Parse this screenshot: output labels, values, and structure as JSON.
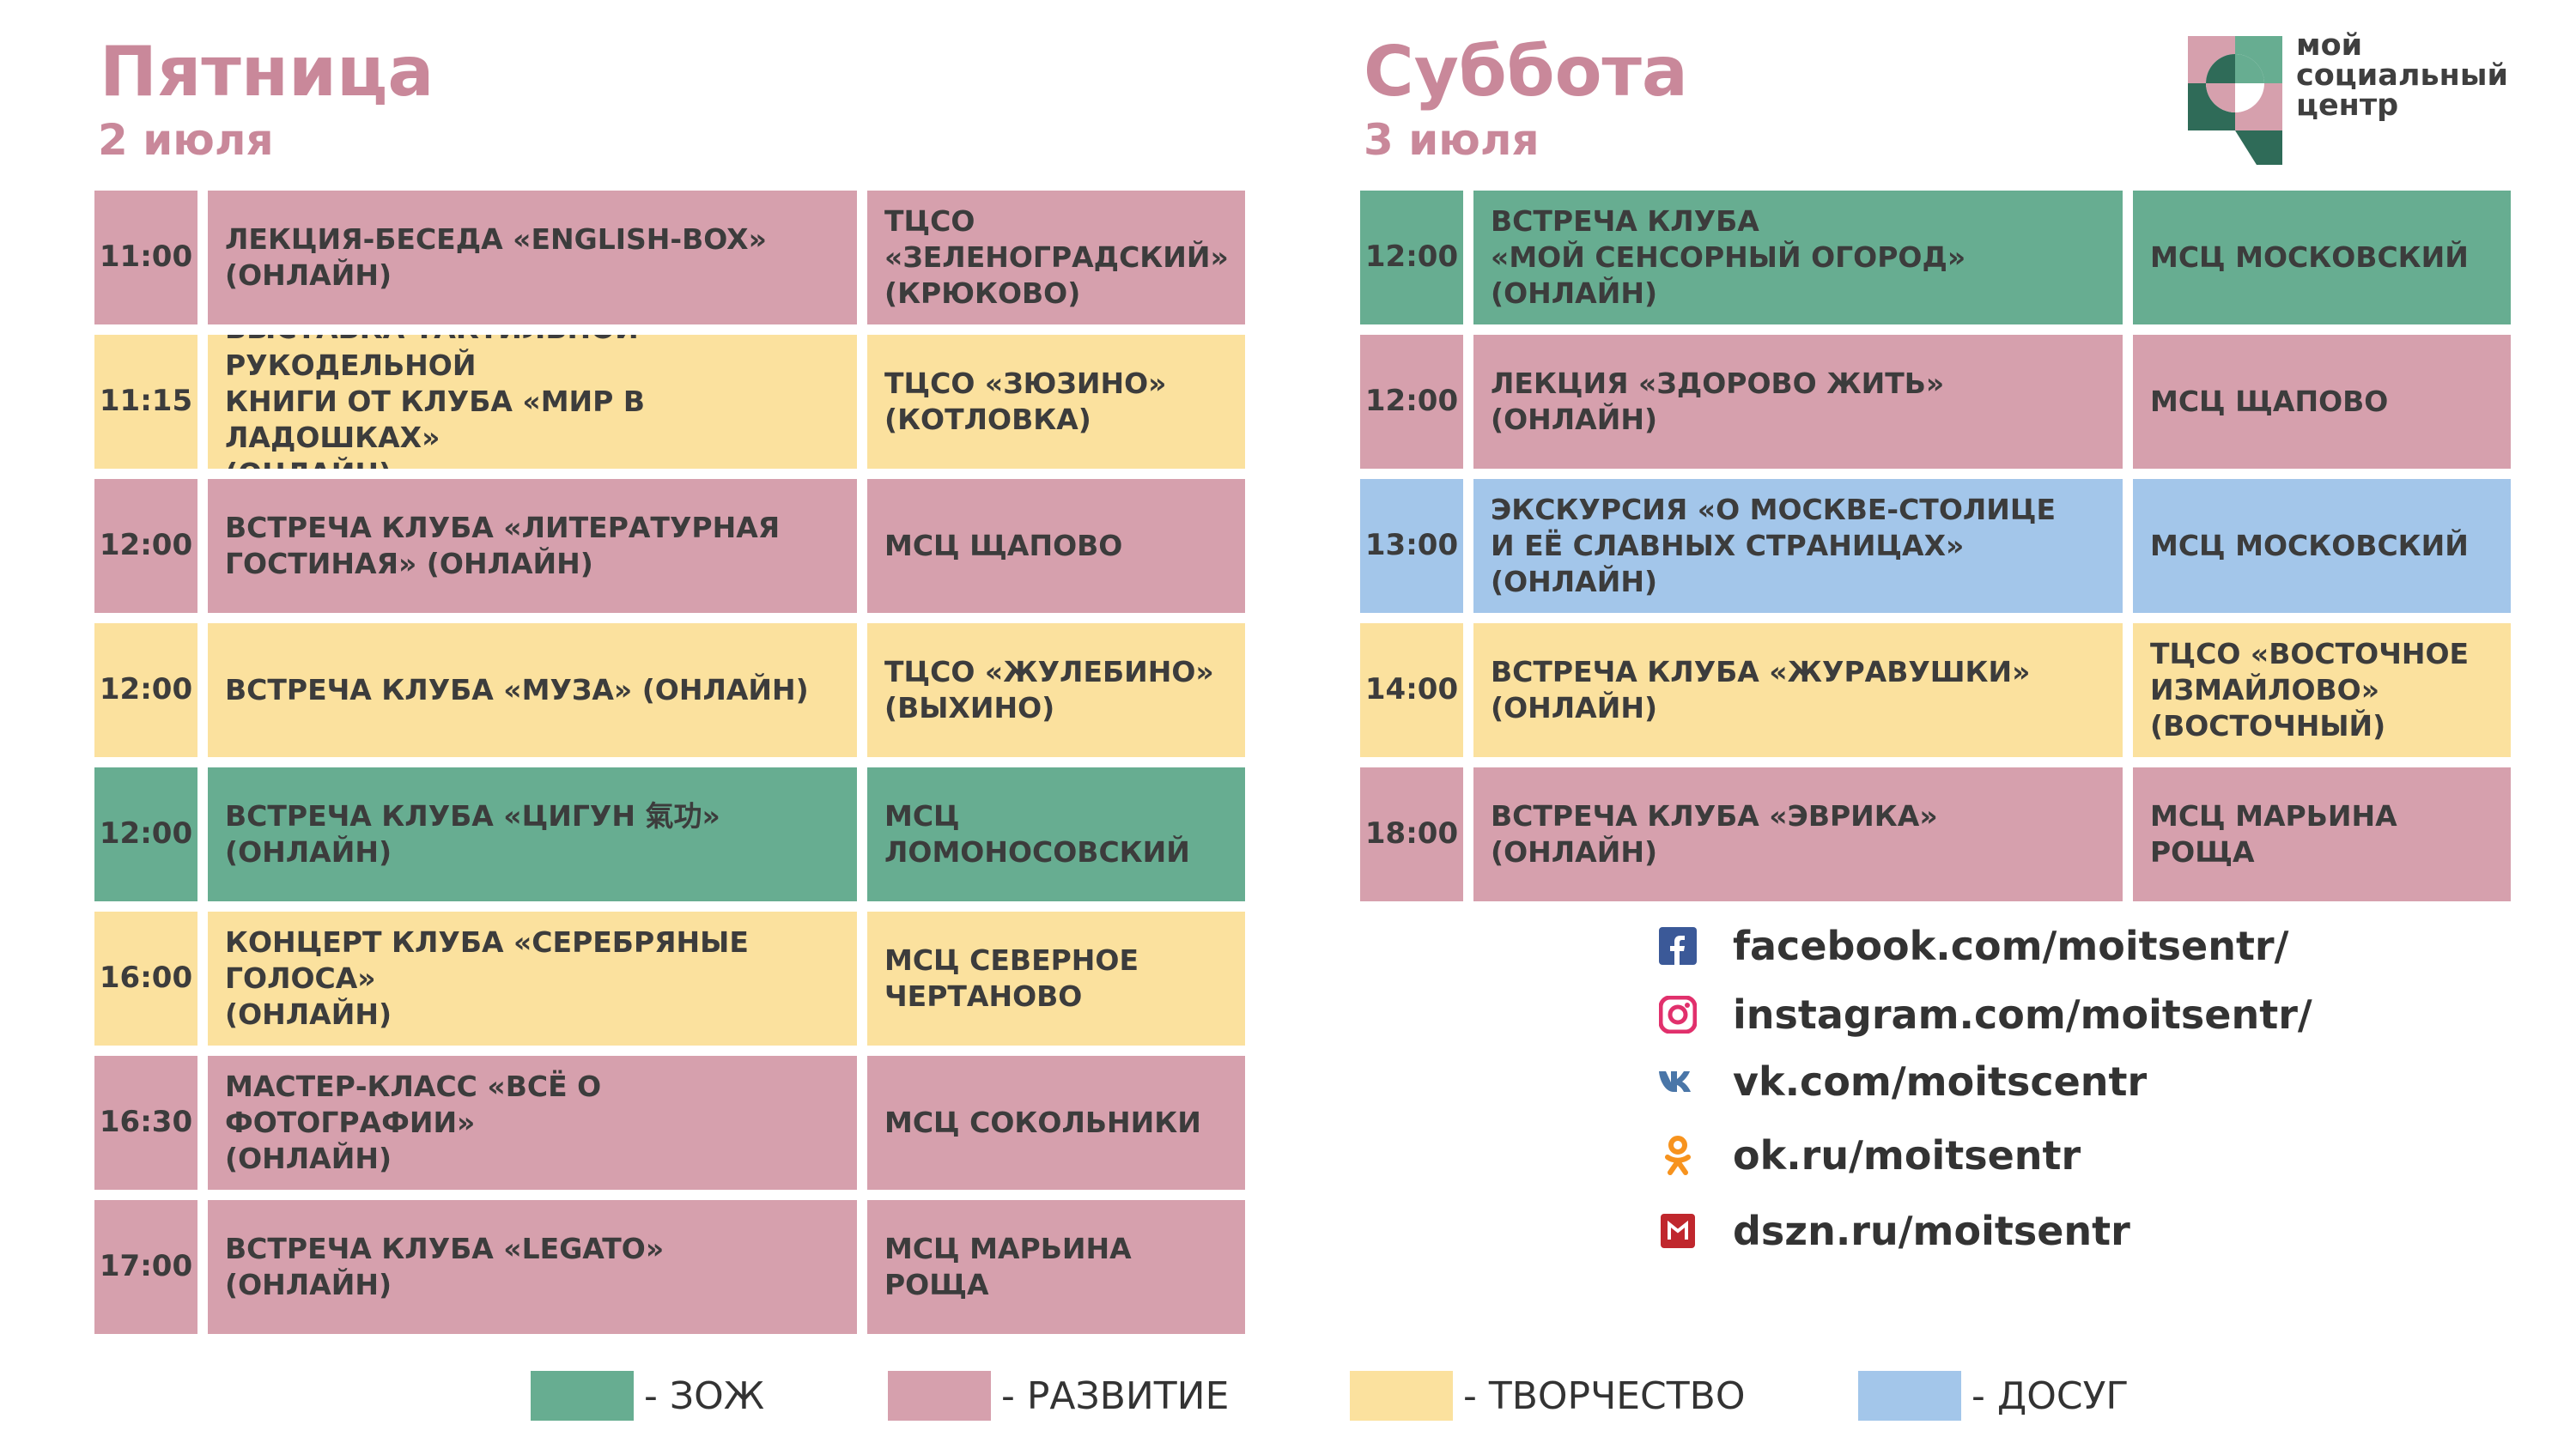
{
  "friday": {
    "title": "Пятница",
    "date": "2 июля",
    "events": [
      {
        "time": "11:00",
        "title": "ЛЕКЦИЯ-БЕСЕДА «ENGLISH-BOX»\n(ОНЛАЙН)",
        "place": "ТЦСО\n«ЗЕЛЕНОГРАДСКИЙ»\n(КРЮКОВО)",
        "category": "pink"
      },
      {
        "time": "11:15",
        "title": "ВЫСТАВКА ТАКТИЛЬНОЙ РУКОДЕЛЬНОЙ\nКНИГИ ОТ КЛУБА «МИР В ЛАДОШКАХ»\n(ОНЛАЙН)",
        "place": "ТЦСО «ЗЮЗИНО»\n(КОТЛОВКА)",
        "category": "yellow"
      },
      {
        "time": "12:00",
        "title": "ВСТРЕЧА КЛУБА «ЛИТЕРАТУРНАЯ\nГОСТИНАЯ» (ОНЛАЙН)",
        "place": "МСЦ ЩАПОВО",
        "category": "pink"
      },
      {
        "time": "12:00",
        "title": "ВСТРЕЧА КЛУБА «МУЗА» (ОНЛАЙН)",
        "place": "ТЦСО «ЖУЛЕБИНО»\n(ВЫХИНО)",
        "category": "yellow"
      },
      {
        "time": "12:00",
        "title": "ВСТРЕЧА КЛУБА «ЦИГУН 氣功» (ОНЛАЙН)",
        "place": "МСЦ\nЛОМОНОСОВСКИЙ",
        "category": "green"
      },
      {
        "time": "16:00",
        "title": "КОНЦЕРТ КЛУБА «СЕРЕБРЯНЫЕ ГОЛОСА»\n(ОНЛАЙН)",
        "place": "МСЦ СЕВЕРНОЕ\nЧЕРТАНОВО",
        "category": "yellow"
      },
      {
        "time": "16:30",
        "title": "МАСТЕР-КЛАСС «ВСЁ О ФОТОГРАФИИ»\n(ОНЛАЙН)",
        "place": "МСЦ СОКОЛЬНИКИ",
        "category": "pink"
      },
      {
        "time": "17:00",
        "title": "ВСТРЕЧА КЛУБА «LEGATO» (ОНЛАЙН)",
        "place": "МСЦ МАРЬИНА РОЩА",
        "category": "pink"
      }
    ]
  },
  "saturday": {
    "title": "Суббота",
    "date": "3 июля",
    "events": [
      {
        "time": "12:00",
        "title": "ВСТРЕЧА КЛУБА\n«МОЙ СЕНСОРНЫЙ ОГОРОД» (ОНЛАЙН)",
        "place": "МСЦ МОСКОВСКИЙ",
        "category": "green"
      },
      {
        "time": "12:00",
        "title": "ЛЕКЦИЯ «ЗДОРОВО ЖИТЬ» (ОНЛАЙН)",
        "place": "МСЦ ЩАПОВО",
        "category": "pink"
      },
      {
        "time": "13:00",
        "title": "ЭКСКУРСИЯ «О МОСКВЕ-СТОЛИЦЕ\nИ ЕЁ СЛАВНЫХ СТРАНИЦАХ»\n(ОНЛАЙН)",
        "place": "МСЦ МОСКОВСКИЙ",
        "category": "blue"
      },
      {
        "time": "14:00",
        "title": "ВСТРЕЧА КЛУБА «ЖУРАВУШКИ»\n(ОНЛАЙН)",
        "place": "ТЦСО «ВОСТОЧНОЕ\nИЗМАЙЛОВО»\n(ВОСТОЧНЫЙ)",
        "category": "yellow"
      },
      {
        "time": "18:00",
        "title": "ВСТРЕЧА КЛУБА «ЭВРИКА»\n(ОНЛАЙН)",
        "place": "МСЦ МАРЬИНА РОЩА",
        "category": "pink"
      }
    ]
  },
  "logo": {
    "line1": "мой",
    "line2": "социальный",
    "line3": "центр"
  },
  "links": [
    {
      "icon": "facebook-icon",
      "text": "facebook.com/moitsentr/",
      "color": "#3b5998"
    },
    {
      "icon": "instagram-icon",
      "text": "instagram.com/moitsentr/",
      "color": "#e1306c"
    },
    {
      "icon": "vk-icon",
      "text": "vk.com/moitscentr",
      "color": "#4a76a8"
    },
    {
      "icon": "ok-icon",
      "text": "ok.ru/moitsentr",
      "color": "#f7931e"
    },
    {
      "icon": "dszn-icon",
      "text": "dszn.ru/moitsentr",
      "color": "#c0272d"
    }
  ],
  "legend": [
    {
      "color": "#67ad91",
      "label": "- ЗОЖ"
    },
    {
      "color": "#d6a0ad",
      "label": "- РАЗВИТИЕ"
    },
    {
      "color": "#fbe19e",
      "label": "- ТВОРЧЕСТВО"
    },
    {
      "color": "#a3c6ea",
      "label": "- ДОСУГ"
    }
  ],
  "colors": {
    "pink": "#d6a0ad",
    "yellow": "#fbe19e",
    "green": "#67ad91",
    "blue": "#a3c6ea",
    "heading": "#c9889a"
  }
}
